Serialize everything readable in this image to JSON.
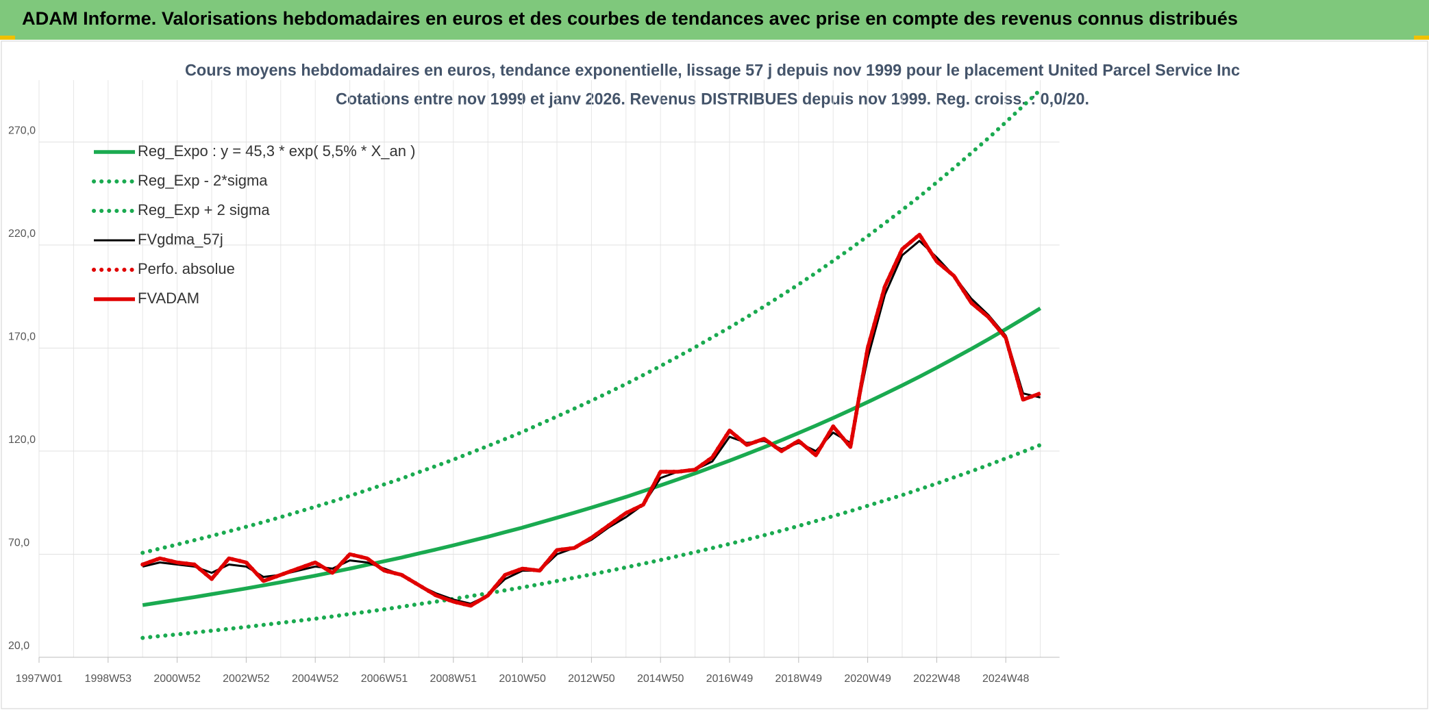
{
  "chart_data": {
    "type": "line",
    "title": "ADAM Informe. Valorisations hebdomadaires en euros et des courbes de tendances avec prise en compte des revenus connus distribués",
    "subtitle": [
      "Cours moyens hebdomadaires en euros, tendance exponentielle, lissage 57 j depuis nov 1999 pour le placement United Parcel Service Inc",
      "Cotations entre nov 1999 et janv 2026. Revenus DISTRIBUES depuis nov 1999. Reg. croiss. : 0,0/20."
    ],
    "categories": [
      "1997W01",
      null,
      null,
      null,
      "1998W53",
      null,
      null,
      null,
      "2000W52",
      null,
      null,
      null,
      "2002W52",
      null,
      null,
      null,
      "2004W52",
      null,
      null,
      null,
      "2006W51",
      null,
      null,
      null,
      "2008W51",
      null,
      null,
      null,
      "2010W50",
      null,
      null,
      null,
      "2012W50",
      null,
      null,
      null,
      "2014W50",
      null,
      null,
      null,
      "2016W49",
      null,
      null,
      null,
      "2018W49",
      null,
      null,
      null,
      "2020W49",
      null,
      null,
      null,
      "2022W48",
      null,
      null,
      null,
      "2024W48",
      null,
      null
    ],
    "ylim": [
      20,
      300
    ],
    "yticks": [
      {
        "value": 20,
        "label": "20,0"
      },
      {
        "value": 70,
        "label": "70,0"
      },
      {
        "value": 120,
        "label": "120,0"
      },
      {
        "value": 170,
        "label": "170,0"
      },
      {
        "value": 220,
        "label": "220,0"
      },
      {
        "value": 270,
        "label": "270,0"
      }
    ],
    "grid": true,
    "legend": "upper left",
    "series": [
      {
        "name": "Reg_Expo : y = 45,3 * exp( 5,5% *  X_an )",
        "color": "#1aaa50",
        "style": "solid",
        "values": [
          null,
          null,
          null,
          null,
          null,
          null,
          45.3,
          46.6,
          47.9,
          49.2,
          50.6,
          52.0,
          53.4,
          54.9,
          56.4,
          58.0,
          59.6,
          61.3,
          63.0,
          64.8,
          66.6,
          68.4,
          70.4,
          72.3,
          74.3,
          76.4,
          78.5,
          80.7,
          82.9,
          85.3,
          87.7,
          90.1,
          92.6,
          95.2,
          97.8,
          100.6,
          103.4,
          106.3,
          109.2,
          112.3,
          115.4,
          118.6,
          121.9,
          125.3,
          128.8,
          132.4,
          136.1,
          139.9,
          143.8,
          147.8,
          151.9,
          156.1,
          160.5,
          165.0,
          169.6,
          174.3,
          179.2,
          184.2,
          189.3
        ]
      },
      {
        "name": "Reg_Exp - 2*sigma",
        "color": "#1aaa50",
        "style": "dotted",
        "values": [
          null,
          null,
          null,
          null,
          null,
          null,
          29.4,
          30.3,
          31.1,
          32.0,
          32.9,
          33.8,
          34.7,
          35.7,
          36.7,
          37.7,
          38.7,
          39.8,
          41.0,
          42.1,
          43.3,
          44.5,
          45.8,
          47.0,
          48.3,
          49.7,
          51.0,
          52.5,
          53.9,
          55.4,
          57.0,
          58.6,
          60.2,
          61.9,
          63.6,
          65.4,
          67.2,
          69.1,
          71.0,
          73.0,
          75.0,
          77.1,
          79.2,
          81.4,
          83.7,
          86.1,
          88.5,
          90.9,
          93.5,
          96.1,
          98.7,
          101.5,
          104.3,
          107.3,
          110.2,
          113.3,
          116.5,
          119.7,
          123.0
        ]
      },
      {
        "name": "Reg_Exp + 2 sigma",
        "color": "#1aaa50",
        "style": "dotted",
        "values": [
          null,
          null,
          null,
          null,
          null,
          null,
          70.7,
          72.7,
          74.7,
          76.8,
          78.9,
          81.1,
          83.3,
          85.6,
          88.0,
          90.5,
          93.0,
          95.6,
          98.3,
          101.1,
          103.9,
          106.7,
          109.8,
          112.8,
          115.9,
          119.2,
          122.5,
          125.9,
          129.3,
          133.1,
          136.8,
          140.6,
          144.5,
          148.5,
          152.6,
          156.9,
          161.3,
          165.8,
          170.4,
          175.2,
          180.0,
          185.0,
          190.2,
          195.5,
          200.9,
          206.5,
          212.3,
          218.2,
          224.3,
          230.6,
          237.0,
          243.5,
          250.4,
          257.4,
          264.6,
          271.9,
          279.6,
          287.4,
          295.3
        ]
      },
      {
        "name": "FVgdma_57j",
        "color": "#000000",
        "style": "solid",
        "values": [
          null,
          null,
          null,
          null,
          null,
          null,
          64,
          66,
          65,
          64,
          61,
          65,
          64,
          59,
          60,
          62,
          64,
          63,
          67,
          66,
          63,
          60,
          55,
          51,
          48,
          46,
          50,
          58,
          62,
          62,
          70,
          73,
          77,
          83,
          88,
          94,
          107,
          110,
          111,
          115,
          127,
          124,
          125,
          121,
          124,
          120,
          129,
          124,
          165,
          196,
          215,
          222,
          214,
          205,
          194,
          186,
          176,
          148,
          146
        ]
      },
      {
        "name": "Perfo. absolue",
        "color": "#e00000",
        "style": "dotted",
        "values": [
          null,
          null,
          null,
          null,
          null,
          null,
          65,
          68,
          66,
          65,
          58,
          68,
          66,
          57,
          60,
          63,
          66,
          61,
          70,
          68,
          62,
          60,
          55,
          50,
          47,
          45,
          50,
          60,
          63,
          62,
          72,
          73,
          78,
          84,
          90,
          94,
          110,
          110,
          111,
          117,
          130,
          123,
          126,
          120,
          125,
          118,
          132,
          122,
          170,
          200,
          218,
          225,
          212,
          205,
          192,
          185,
          175,
          145,
          148
        ]
      },
      {
        "name": "FVADAM",
        "color": "#e00000",
        "style": "solid",
        "values": [
          null,
          null,
          null,
          null,
          null,
          null,
          65,
          68,
          66,
          65,
          58,
          68,
          66,
          57,
          60,
          63,
          66,
          61,
          70,
          68,
          62,
          60,
          55,
          50,
          47,
          45,
          50,
          60,
          63,
          62,
          72,
          73,
          78,
          84,
          90,
          94,
          110,
          110,
          111,
          117,
          130,
          123,
          126,
          120,
          125,
          118,
          132,
          122,
          170,
          200,
          218,
          225,
          212,
          205,
          192,
          185,
          175,
          145,
          148
        ]
      }
    ]
  }
}
